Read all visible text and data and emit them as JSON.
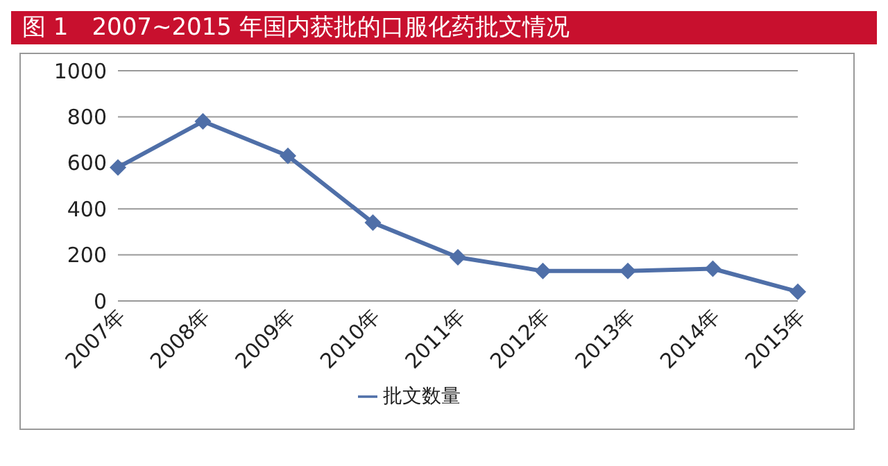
{
  "chart_data": {
    "type": "line",
    "title": "图 1　2007~2015 年国内获批的口服化药批文情况",
    "categories": [
      "2007年",
      "2008年",
      "2009年",
      "2010年",
      "2011年",
      "2012年",
      "2013年",
      "2014年",
      "2015年"
    ],
    "series": [
      {
        "name": "批文数量",
        "color": "#4f6fa8",
        "values": [
          580,
          780,
          630,
          340,
          190,
          130,
          130,
          140,
          40
        ]
      }
    ],
    "ylim": [
      0,
      1000
    ],
    "yticks": [
      0,
      200,
      400,
      600,
      800,
      1000
    ],
    "grid": "y",
    "legend": "bottom",
    "marker": "diamond",
    "line_style": "solid"
  }
}
